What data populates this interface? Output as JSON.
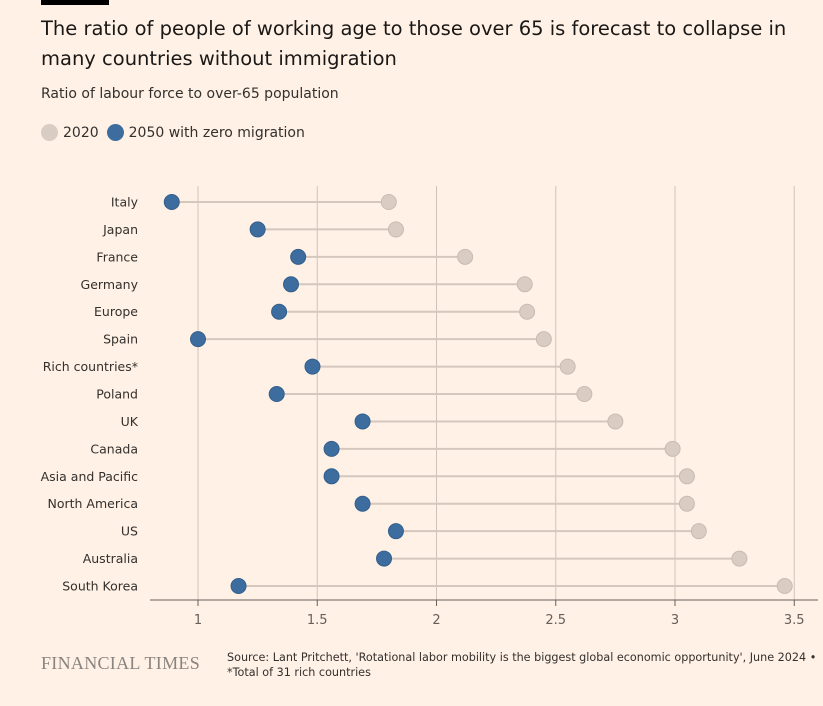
{
  "title": "The ratio of people of working age to those over 65 is forecast to collapse in many countries without immigration",
  "subtitle": "Ratio of labour force to over-65 population",
  "colors": {
    "2020": "#d9ccc3",
    "2050": "#3d6d9e",
    "line": "#d4c7be",
    "grid": "#cfc2b9"
  },
  "chart_data": {
    "type": "dot-plot",
    "xlim": [
      0.8,
      3.6
    ],
    "xticks": [
      1,
      1.5,
      2,
      2.5,
      3,
      3.5
    ],
    "xtick_labels": [
      "1",
      "1.5",
      "2",
      "2.5",
      "3",
      "3.5"
    ],
    "grid": true,
    "legend_position": "top-left",
    "categories": [
      "Italy",
      "Japan",
      "France",
      "Germany",
      "Europe",
      "Spain",
      "Rich countries*",
      "Poland",
      "UK",
      "Canada",
      "Asia and Pacific",
      "North America",
      "US",
      "Australia",
      "South Korea"
    ],
    "series": [
      {
        "name": "2020",
        "values": [
          1.8,
          1.83,
          2.12,
          2.37,
          2.38,
          2.45,
          2.55,
          2.62,
          2.75,
          2.99,
          3.05,
          3.05,
          3.1,
          3.27,
          3.46
        ]
      },
      {
        "name": "2050 with zero migration",
        "values": [
          0.89,
          1.25,
          1.42,
          1.39,
          1.34,
          1.0,
          1.48,
          1.33,
          1.69,
          1.56,
          1.56,
          1.69,
          1.83,
          1.78,
          1.17
        ]
      }
    ]
  },
  "footer": {
    "brand": "FINANCIAL TIMES",
    "source": "Source: Lant Pritchett, 'Rotational labor mobility is the biggest global economic opportunity', June 2024 •",
    "note": "*Total of 31 rich countries"
  }
}
